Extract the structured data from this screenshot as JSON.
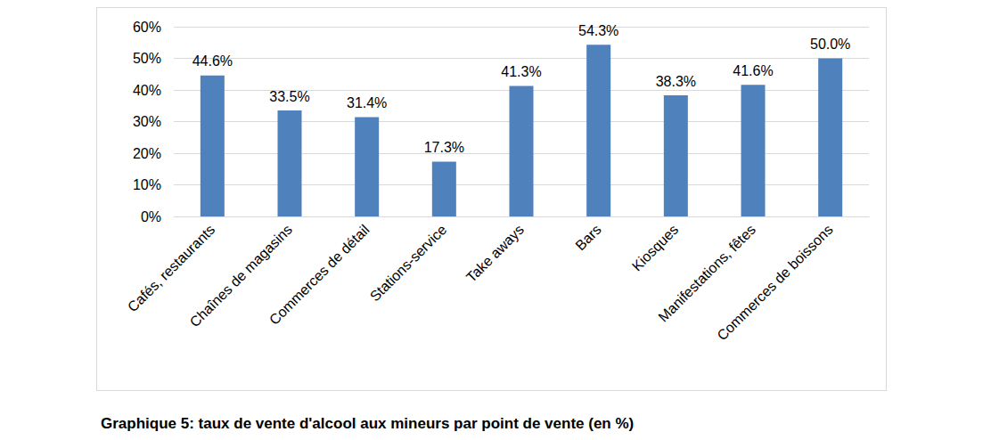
{
  "chart_data": {
    "type": "bar",
    "title": "Graphique 5: taux de vente d'alcool aux mineurs par point de vente (en %)",
    "categories": [
      "Cafés, restaurants",
      "Chaînes de magasins",
      "Commerces de détail",
      "Stations-service",
      "Take aways",
      "Bars",
      "Kiosques",
      "Manifestations, fêtes",
      "Commerces de boissons"
    ],
    "values": [
      44.6,
      33.5,
      31.4,
      17.3,
      41.3,
      54.3,
      38.3,
      41.6,
      50.0
    ],
    "value_labels": [
      "44.6%",
      "33.5%",
      "31.4%",
      "17.3%",
      "41.3%",
      "54.3%",
      "38.3%",
      "41.6%",
      "50.0%"
    ],
    "color": "#4f81bd",
    "ylim": [
      0,
      60
    ],
    "yticks": [
      {
        "value": 0,
        "label": "0%"
      },
      {
        "value": 10,
        "label": "10%"
      },
      {
        "value": 20,
        "label": "20%"
      },
      {
        "value": 30,
        "label": "30%"
      },
      {
        "value": 40,
        "label": "40%"
      },
      {
        "value": 50,
        "label": "50%"
      },
      {
        "value": 60,
        "label": "60%"
      }
    ],
    "grid": true,
    "data_labels": true
  }
}
